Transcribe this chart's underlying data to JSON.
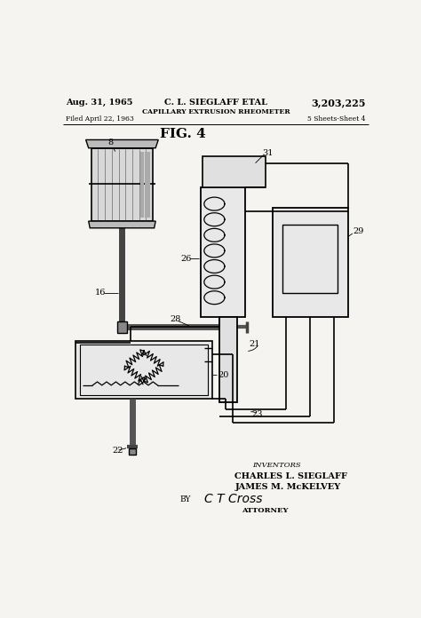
{
  "bg_color": "#f5f4f1",
  "title_line1": "Aug. 31, 1965",
  "title_center": "C. L. SIEGLAFF ETAL",
  "title_patent": "3,203,225",
  "subtitle": "CAPILLARY EXTRUSION RHEOMETER",
  "filed": "Filed April 22, 1963",
  "sheets": "5 Sheets-Sheet 4",
  "fig_label": "FIG. 4",
  "inventors_label": "INVENTORS",
  "inventor1": "CHARLES L. SIEGLAFF",
  "inventor2": "JAMES M. McKELVEY",
  "by_label": "BY",
  "signature": "C T Cross",
  "attorney_label": "ATTORNEY"
}
